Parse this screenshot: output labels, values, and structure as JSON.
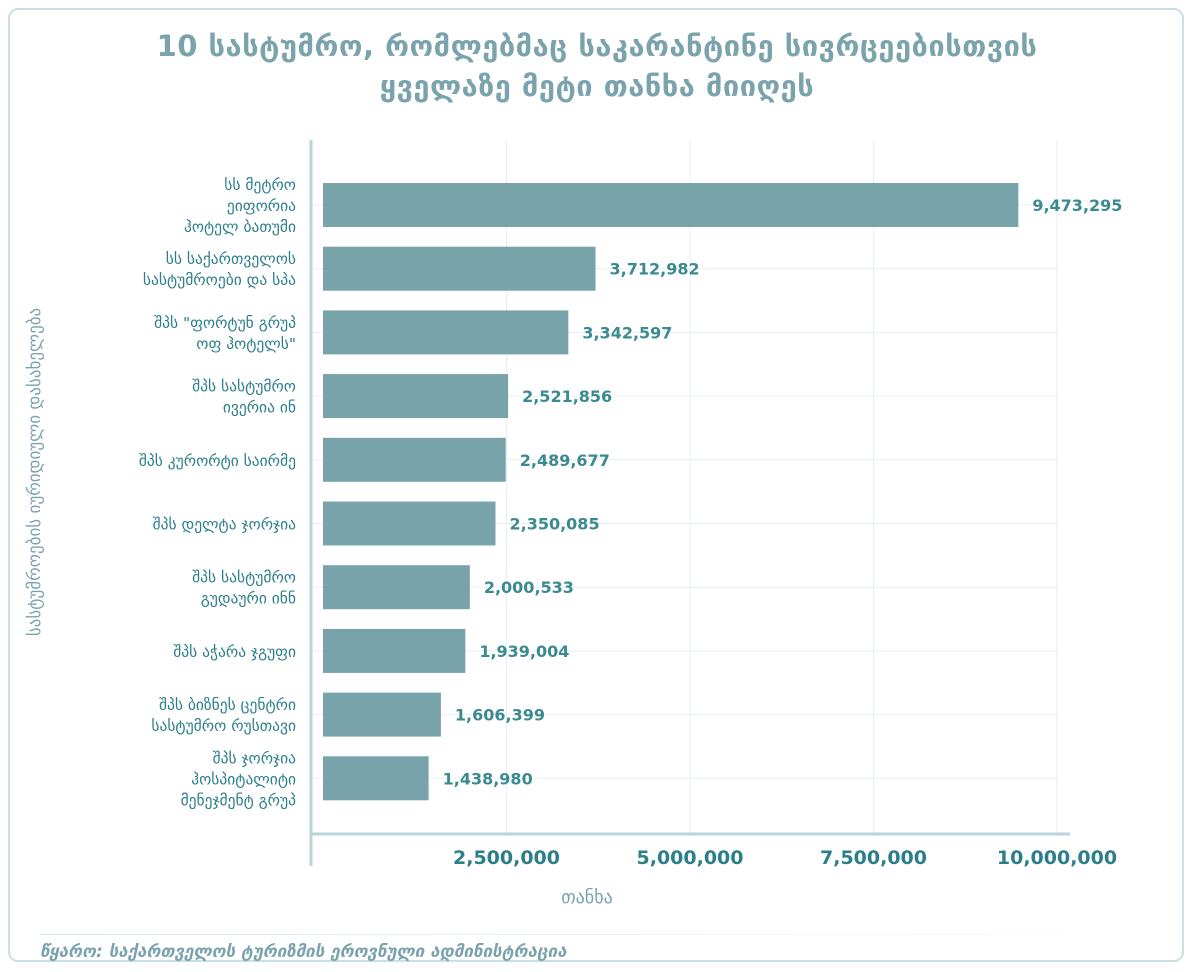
{
  "title_lines": [
    "10 სასტუმრო, რომლებმაც საკარანტინე სივრცეებისთვის",
    "ყველაზე მეტი თანხა მიიღეს"
  ],
  "source": "წყარო: საქართველოს ტურიზმის ეროვნული ადმინისტრაცია",
  "colors": {
    "bar": "#78a3ab",
    "title": "#7aa3ad",
    "value_label": "#3b8a8f",
    "category_label": "#2b7f8a",
    "tick_label": "#2b7f8a",
    "axis_line": "#b9d5db",
    "grid": "#e6eff1"
  },
  "chart_data": {
    "type": "bar",
    "orientation": "horizontal",
    "ylabel": "სასტუმროების იურიდიული დასახელება",
    "xlabel": "თანხა",
    "xlim": [
      0,
      10000000
    ],
    "xticks": [
      2500000,
      5000000,
      7500000,
      10000000
    ],
    "xtick_labels": [
      "2,500,000",
      "5,000,000",
      "7,500,000",
      "10,000,000"
    ],
    "grid": true,
    "categories": [
      [
        "სს მეტრო",
        "ეიფორია",
        "ჰოტელ ბათუმი"
      ],
      [
        "სს საქართველოს",
        "სასტუმროები და სპა"
      ],
      [
        "შპს \"ფორტუნ გრუპ",
        "ოფ ჰოტელს\""
      ],
      [
        "შპს სასტუმრო",
        "ივერია ინ"
      ],
      [
        "შპს კურორტი საირმე"
      ],
      [
        "შპს დელტა ჯორჯია"
      ],
      [
        "შპს სასტუმრო",
        "გუდაური ინნ"
      ],
      [
        "შპს აჭარა ჯგუფი"
      ],
      [
        "შპს ბიზნეს ცენტრი",
        "სასტუმრო რუსთავი"
      ],
      [
        "შპს ჯორჯია",
        "ჰოსპიტალიტი",
        "მენეჯმენტ გრუპ"
      ]
    ],
    "values": [
      9473295,
      3712982,
      3342597,
      2521856,
      2489677,
      2350085,
      2000533,
      1939004,
      1606399,
      1438980
    ],
    "value_labels": [
      "9,473,295",
      "3,712,982",
      "3,342,597",
      "2,521,856",
      "2,489,677",
      "2,350,085",
      "2,000,533",
      "1,939,004",
      "1,606,399",
      "1,438,980"
    ]
  }
}
